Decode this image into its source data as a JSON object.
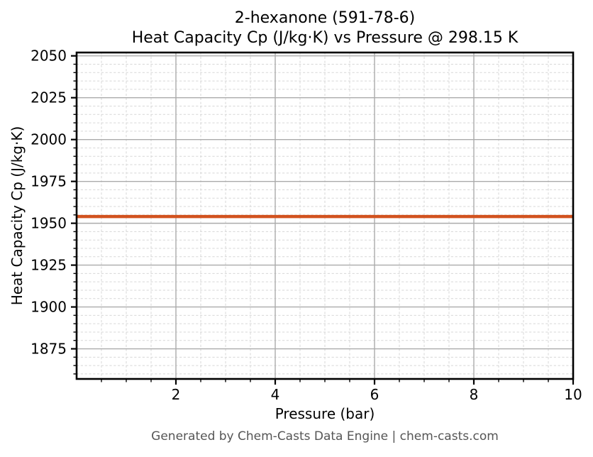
{
  "chart_data": {
    "type": "line",
    "title": "2-hexanone (591-78-6)",
    "subtitle": "Heat Capacity Cp (J/kg·K) vs Pressure @ 298.15 K",
    "xlabel": "Pressure (bar)",
    "ylabel": "Heat Capacity Cp (J/kg·K)",
    "xlim": [
      0,
      10
    ],
    "ylim": [
      1857,
      2052
    ],
    "x_major_ticks": [
      2,
      4,
      6,
      8,
      10
    ],
    "x_minor_tick_step": 0.5,
    "y_major_ticks": [
      1875,
      1900,
      1925,
      1950,
      1975,
      2000,
      2025,
      2050
    ],
    "y_minor_tick_step": 5,
    "grid": {
      "major": true,
      "minor": true,
      "major_color": "#ababab",
      "minor_color": "#d7d7d7",
      "minor_style": "dashed"
    },
    "legend": null,
    "axis_color": "#000000",
    "series": [
      {
        "name": "Heat Capacity Cp",
        "x": [
          0,
          10
        ],
        "y": [
          1954,
          1954
        ],
        "color": "#d2521e",
        "line_width": 4.5
      }
    ]
  },
  "footer": "Generated by Chem-Casts Data Engine | chem-casts.com"
}
